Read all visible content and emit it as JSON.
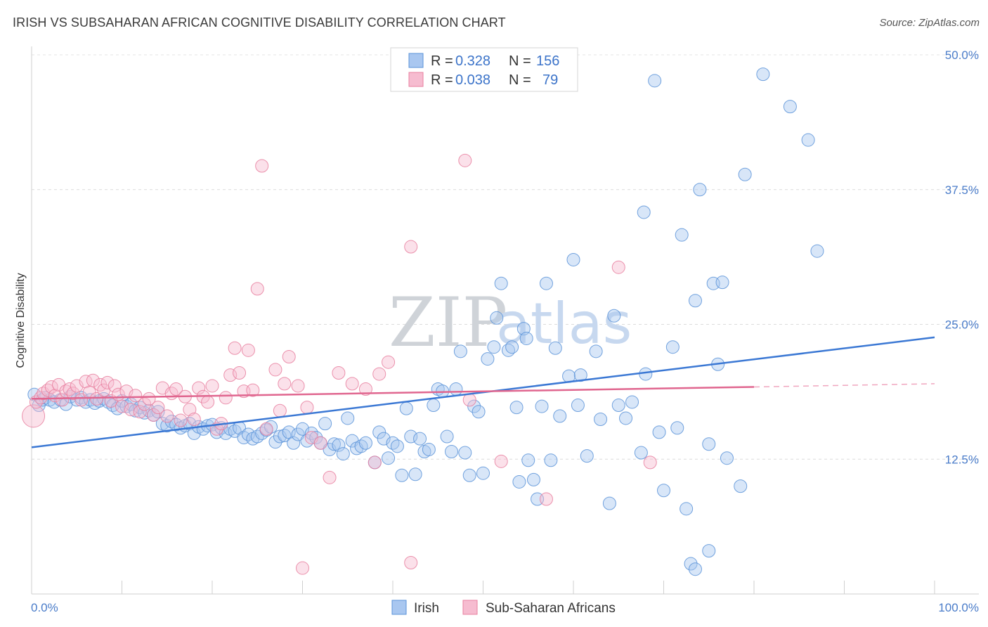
{
  "title": "IRISH VS SUBSAHARAN AFRICAN COGNITIVE DISABILITY CORRELATION CHART",
  "source": "Source: ZipAtlas.com",
  "watermark": {
    "zip": "ZIP",
    "atlas": "atlas"
  },
  "chart_data": {
    "type": "scatter",
    "ylabel": "Cognitive Disability",
    "xlim": [
      0,
      100
    ],
    "ylim": [
      0,
      50
    ],
    "x_tick_labels": [
      "0.0%",
      "100.0%"
    ],
    "y_ticks": [
      12.5,
      25.0,
      37.5,
      50.0
    ],
    "y_tick_labels": [
      "12.5%",
      "25.0%",
      "37.5%",
      "50.0%"
    ],
    "grid": true,
    "legend": {
      "placement": "top-center",
      "rows": [
        {
          "r_label": "R =",
          "r_value": "0.328",
          "n_label": "N =",
          "n_value": "156"
        },
        {
          "r_label": "R =",
          "r_value": "0.038",
          "n_label": "N =",
          "n_value": "79"
        }
      ]
    },
    "series": [
      {
        "name": "Irish",
        "color": "#5b93d8",
        "fill": "#a9c7f0",
        "trend": {
          "x": [
            0,
            100
          ],
          "y": [
            13.6,
            23.8
          ]
        },
        "points": [
          [
            0.3,
            18.5
          ],
          [
            0.8,
            17.5
          ],
          [
            1.2,
            18.0
          ],
          [
            1.5,
            18.2
          ],
          [
            2.0,
            18.0
          ],
          [
            2.5,
            17.8
          ],
          [
            3.2,
            18.0
          ],
          [
            3.8,
            17.6
          ],
          [
            4.3,
            18.3
          ],
          [
            5.0,
            18.0
          ],
          [
            5.5,
            18.2
          ],
          [
            6.0,
            17.8
          ],
          [
            6.5,
            18.0
          ],
          [
            7.0,
            17.7
          ],
          [
            7.5,
            17.9
          ],
          [
            8.0,
            18.1
          ],
          [
            8.5,
            17.8
          ],
          [
            9.0,
            17.5
          ],
          [
            9.5,
            17.2
          ],
          [
            10.0,
            17.9
          ],
          [
            10.5,
            17.4
          ],
          [
            11.0,
            17.6
          ],
          [
            11.5,
            17.0
          ],
          [
            12.0,
            17.3
          ],
          [
            12.5,
            16.8
          ],
          [
            13.0,
            17.0
          ],
          [
            13.5,
            16.6
          ],
          [
            14.0,
            16.9
          ],
          [
            14.5,
            15.8
          ],
          [
            15.0,
            15.6
          ],
          [
            15.5,
            16.0
          ],
          [
            16.0,
            15.7
          ],
          [
            16.5,
            15.4
          ],
          [
            17.0,
            15.6
          ],
          [
            17.5,
            15.8
          ],
          [
            18.0,
            14.9
          ],
          [
            18.5,
            15.5
          ],
          [
            19.0,
            15.3
          ],
          [
            19.5,
            15.6
          ],
          [
            20.0,
            15.7
          ],
          [
            20.5,
            15.0
          ],
          [
            21.0,
            15.4
          ],
          [
            21.5,
            14.9
          ],
          [
            22.0,
            15.3
          ],
          [
            22.5,
            15.1
          ],
          [
            23.0,
            15.4
          ],
          [
            23.5,
            14.5
          ],
          [
            24.0,
            14.8
          ],
          [
            24.5,
            14.4
          ],
          [
            25.0,
            14.6
          ],
          [
            25.5,
            14.9
          ],
          [
            26.0,
            15.2
          ],
          [
            26.5,
            15.5
          ],
          [
            27.0,
            14.1
          ],
          [
            27.5,
            14.6
          ],
          [
            28.0,
            14.7
          ],
          [
            28.5,
            15.0
          ],
          [
            29.0,
            14.0
          ],
          [
            29.5,
            14.8
          ],
          [
            30.0,
            15.3
          ],
          [
            30.5,
            14.2
          ],
          [
            31.0,
            14.9
          ],
          [
            31.5,
            14.5
          ],
          [
            32.0,
            14.0
          ],
          [
            32.5,
            15.8
          ],
          [
            33.0,
            13.4
          ],
          [
            33.5,
            13.9
          ],
          [
            34.0,
            13.8
          ],
          [
            34.5,
            13.0
          ],
          [
            35.0,
            16.3
          ],
          [
            35.5,
            14.2
          ],
          [
            36.0,
            13.5
          ],
          [
            36.5,
            13.7
          ],
          [
            37.0,
            14.0
          ],
          [
            38.0,
            12.2
          ],
          [
            38.5,
            15.0
          ],
          [
            39.0,
            14.4
          ],
          [
            39.5,
            12.6
          ],
          [
            40.0,
            14.0
          ],
          [
            40.5,
            13.7
          ],
          [
            41.0,
            11.0
          ],
          [
            41.5,
            17.2
          ],
          [
            42.0,
            14.6
          ],
          [
            42.5,
            11.1
          ],
          [
            43.0,
            14.4
          ],
          [
            43.5,
            13.2
          ],
          [
            44.0,
            13.4
          ],
          [
            44.5,
            17.5
          ],
          [
            45.0,
            19.0
          ],
          [
            45.5,
            18.8
          ],
          [
            46.0,
            14.6
          ],
          [
            46.5,
            13.2
          ],
          [
            47.0,
            19.0
          ],
          [
            47.5,
            22.5
          ],
          [
            48.0,
            13.1
          ],
          [
            48.5,
            11.0
          ],
          [
            49.0,
            17.4
          ],
          [
            49.5,
            16.9
          ],
          [
            50.0,
            11.2
          ],
          [
            50.5,
            21.8
          ],
          [
            51.5,
            25.6
          ],
          [
            51.2,
            22.9
          ],
          [
            52.0,
            28.8
          ],
          [
            52.8,
            22.6
          ],
          [
            53.2,
            22.9
          ],
          [
            53.7,
            17.3
          ],
          [
            54.0,
            10.4
          ],
          [
            54.5,
            24.6
          ],
          [
            54.8,
            23.7
          ],
          [
            55.0,
            12.4
          ],
          [
            55.6,
            10.6
          ],
          [
            56.0,
            8.8
          ],
          [
            56.5,
            17.4
          ],
          [
            57.0,
            28.8
          ],
          [
            57.5,
            12.4
          ],
          [
            58.0,
            22.8
          ],
          [
            58.5,
            16.5
          ],
          [
            59.5,
            20.2
          ],
          [
            60.0,
            31.0
          ],
          [
            60.5,
            17.5
          ],
          [
            60.8,
            20.3
          ],
          [
            61.5,
            12.8
          ],
          [
            62.5,
            22.5
          ],
          [
            63.0,
            16.2
          ],
          [
            64.0,
            8.4
          ],
          [
            64.5,
            25.8
          ],
          [
            65.0,
            17.5
          ],
          [
            65.8,
            16.3
          ],
          [
            66.5,
            17.8
          ],
          [
            67.5,
            13.1
          ],
          [
            67.8,
            35.4
          ],
          [
            68.0,
            20.4
          ],
          [
            69.0,
            47.6
          ],
          [
            69.5,
            15.0
          ],
          [
            70.0,
            9.6
          ],
          [
            71.0,
            22.9
          ],
          [
            71.5,
            15.4
          ],
          [
            72.0,
            33.3
          ],
          [
            72.5,
            7.9
          ],
          [
            73.5,
            27.2
          ],
          [
            74.0,
            37.5
          ],
          [
            75.0,
            13.9
          ],
          [
            75.5,
            28.8
          ],
          [
            76.0,
            21.3
          ],
          [
            76.5,
            28.9
          ],
          [
            77.0,
            12.6
          ],
          [
            78.5,
            10.0
          ],
          [
            79.0,
            38.9
          ],
          [
            81.0,
            48.2
          ],
          [
            84.0,
            45.2
          ],
          [
            86.0,
            42.1
          ],
          [
            87.0,
            31.8
          ],
          [
            73.0,
            2.8
          ],
          [
            73.5,
            2.3
          ],
          [
            75.0,
            4.0
          ]
        ]
      },
      {
        "name": "Sub-Saharan Africans",
        "color": "#e87f9f",
        "fill": "#f6bcd0",
        "trend": {
          "x": [
            0,
            80
          ],
          "y": [
            18.1,
            19.2
          ]
        },
        "trend_dashed": {
          "x": [
            80,
            100
          ],
          "y": [
            19.2,
            19.5
          ]
        },
        "points": [
          [
            0.2,
            16.5
          ],
          [
            0.5,
            17.8
          ],
          [
            1.0,
            18.2
          ],
          [
            1.3,
            18.6
          ],
          [
            1.8,
            18.9
          ],
          [
            2.2,
            19.2
          ],
          [
            2.6,
            18.4
          ],
          [
            3.0,
            19.4
          ],
          [
            3.4,
            18.0
          ],
          [
            3.8,
            18.8
          ],
          [
            4.2,
            19.0
          ],
          [
            4.6,
            18.6
          ],
          [
            5.0,
            19.3
          ],
          [
            5.5,
            18.0
          ],
          [
            6.0,
            19.7
          ],
          [
            6.4,
            18.7
          ],
          [
            6.8,
            19.8
          ],
          [
            7.2,
            18.1
          ],
          [
            7.6,
            19.4
          ],
          [
            8.0,
            18.9
          ],
          [
            8.4,
            19.6
          ],
          [
            8.8,
            17.9
          ],
          [
            9.2,
            19.3
          ],
          [
            9.6,
            18.5
          ],
          [
            10.0,
            17.4
          ],
          [
            10.5,
            18.8
          ],
          [
            11.0,
            17.1
          ],
          [
            11.5,
            18.4
          ],
          [
            12.0,
            16.9
          ],
          [
            12.5,
            17.6
          ],
          [
            13.0,
            18.1
          ],
          [
            13.5,
            16.6
          ],
          [
            14.0,
            17.3
          ],
          [
            14.5,
            19.1
          ],
          [
            15.0,
            16.5
          ],
          [
            15.5,
            18.6
          ],
          [
            16.0,
            19.0
          ],
          [
            16.5,
            16.1
          ],
          [
            17.0,
            18.3
          ],
          [
            17.5,
            17.1
          ],
          [
            18.0,
            16.2
          ],
          [
            18.5,
            19.1
          ],
          [
            19.0,
            18.3
          ],
          [
            19.5,
            17.8
          ],
          [
            20.0,
            19.3
          ],
          [
            20.5,
            15.3
          ],
          [
            21.0,
            15.8
          ],
          [
            21.5,
            18.2
          ],
          [
            22.0,
            20.3
          ],
          [
            22.5,
            22.8
          ],
          [
            23.0,
            20.5
          ],
          [
            23.5,
            18.8
          ],
          [
            24.0,
            22.6
          ],
          [
            24.5,
            18.9
          ],
          [
            25.0,
            28.3
          ],
          [
            25.5,
            39.7
          ],
          [
            26.0,
            15.3
          ],
          [
            27.0,
            20.8
          ],
          [
            27.5,
            17.0
          ],
          [
            28.0,
            19.5
          ],
          [
            28.5,
            22.0
          ],
          [
            29.5,
            19.3
          ],
          [
            30.5,
            17.3
          ],
          [
            31.0,
            14.5
          ],
          [
            32.0,
            14.0
          ],
          [
            33.0,
            10.8
          ],
          [
            34.0,
            20.5
          ],
          [
            35.5,
            19.5
          ],
          [
            37.0,
            19.0
          ],
          [
            38.0,
            12.2
          ],
          [
            38.5,
            20.4
          ],
          [
            39.5,
            21.5
          ],
          [
            42.0,
            32.2
          ],
          [
            48.0,
            40.2
          ],
          [
            48.5,
            18.0
          ],
          [
            52.0,
            12.3
          ],
          [
            57.0,
            8.8
          ],
          [
            65.0,
            30.3
          ],
          [
            68.5,
            12.2
          ],
          [
            30.0,
            2.4
          ],
          [
            42.0,
            2.9
          ]
        ]
      }
    ]
  }
}
